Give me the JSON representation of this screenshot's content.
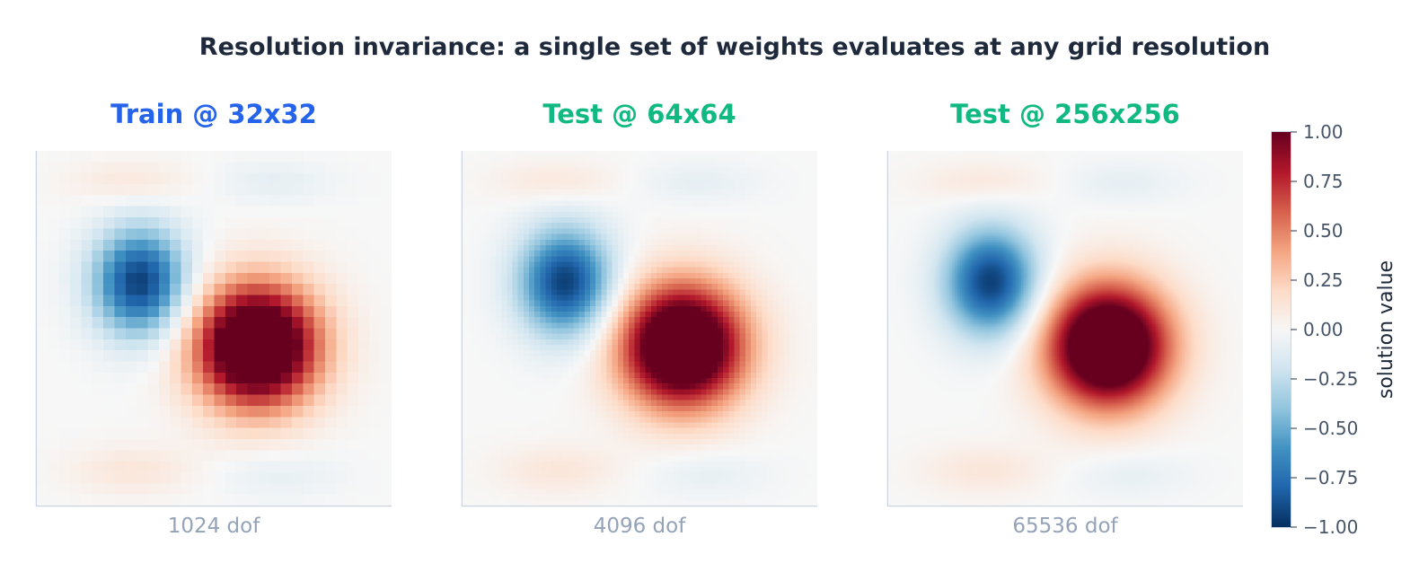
{
  "suptitle": "Resolution invariance: a single set of weights evaluates at any grid resolution",
  "colors": {
    "train_title": "#2563eb",
    "test_title": "#10b981",
    "axis": "#cbd5e1",
    "colormap": "RdBu_r"
  },
  "chart_data": {
    "type": "heatmap",
    "panels": [
      {
        "title": "Train @ 32x32",
        "label": "1024 dof",
        "grid": 32,
        "title_color": "train"
      },
      {
        "title": "Test @ 64x64",
        "label": "4096 dof",
        "grid": 64,
        "title_color": "test"
      },
      {
        "title": "Test @ 256x256",
        "label": "65536 dof",
        "grid": 256,
        "title_color": "test"
      }
    ],
    "colorbar": {
      "label": "solution value",
      "range": [
        -1.0,
        1.0
      ],
      "ticks": [
        "1.00",
        "0.75",
        "0.50",
        "0.25",
        "0.00",
        "−0.25",
        "−0.50",
        "−0.75",
        "−1.00"
      ]
    }
  }
}
